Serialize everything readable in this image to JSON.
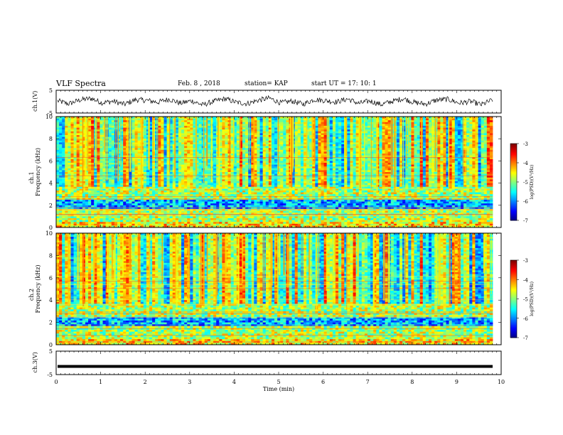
{
  "header": {
    "title": "VLF Spectra",
    "date": "Feb. 8 , 2018",
    "station": "station= KAP",
    "start": "start UT = 17: 10: 1"
  },
  "chart_data": [
    {
      "type": "line",
      "ylabel": "ch.1(V)",
      "ylim": [
        -5,
        5
      ],
      "yticks": [
        "5",
        "-5"
      ],
      "description_free": true,
      "xlim": [
        0,
        10
      ],
      "values_sample": [
        0.4,
        -1.2,
        0.9,
        1.8,
        -0.6,
        0.2,
        -1.5,
        1.1,
        0.7,
        -0.3,
        1.4,
        -0.9,
        0.5,
        -1.8,
        0.1,
        1.6,
        -0.4,
        -1.1,
        0.8,
        1.9,
        -0.7,
        0.3,
        -1.4,
        1.2,
        0.6,
        -0.2,
        1.5,
        -1.0,
        0.4,
        -1.6,
        0.2,
        1.7,
        -0.5,
        -1.3,
        0.9,
        1.3,
        -0.8,
        0.1,
        -1.7,
        1.0
      ]
    },
    {
      "type": "heatmap",
      "ylabel": "ch.1\nFrequency (kHz)",
      "ylim": [
        0,
        10
      ],
      "yticks": [
        "0",
        "2",
        "4",
        "6",
        "8",
        "10"
      ],
      "xlim": [
        0,
        10
      ],
      "colorbar": {
        "label": "log(PSD)(V²/Hz)",
        "range": [
          -7,
          -3
        ],
        "ticks": [
          "-3",
          "-4",
          "-5",
          "-6",
          "-7"
        ]
      }
    },
    {
      "type": "heatmap",
      "ylabel": "ch.2\nFrequency (kHz)",
      "ylim": [
        0,
        10
      ],
      "yticks": [
        "0",
        "2",
        "4",
        "6",
        "8",
        "10"
      ],
      "xlim": [
        0,
        10
      ],
      "colorbar": {
        "label": "log(PSD)(V²/Hz)",
        "range": [
          -7,
          -3
        ],
        "ticks": [
          "-3",
          "-4",
          "-5",
          "-6",
          "-7"
        ]
      }
    },
    {
      "type": "line",
      "ylabel": "ch.3(V)",
      "ylim": [
        -5,
        5
      ],
      "yticks": [
        "5",
        "-5"
      ],
      "xlim": [
        0,
        10
      ],
      "constant_value": -1.5,
      "xlabel": "Time (min)",
      "xticks": [
        "0",
        "1",
        "2",
        "3",
        "4",
        "5",
        "6",
        "7",
        "8",
        "9",
        "10"
      ]
    }
  ]
}
